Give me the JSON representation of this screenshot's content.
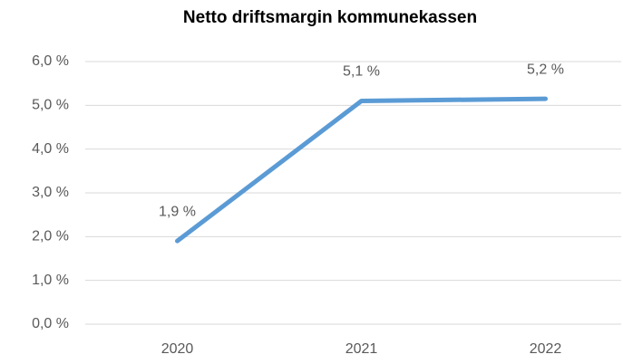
{
  "chart_data": {
    "type": "line",
    "title": "Netto driftsmargin kommunekassen",
    "categories": [
      "2020",
      "2021",
      "2022"
    ],
    "series": [
      {
        "color": "#5b9bd5",
        "values": [
          1.9,
          5.1,
          5.15
        ],
        "value_labels": [
          "1,9 %",
          "5,1 %",
          "5,2 %"
        ]
      }
    ],
    "ylim": [
      0,
      6
    ],
    "yticks": [
      {
        "value": 0,
        "label": "0,0 %"
      },
      {
        "value": 1,
        "label": "1,0 %"
      },
      {
        "value": 2,
        "label": "2,0 %"
      },
      {
        "value": 3,
        "label": "3,0 %"
      },
      {
        "value": 4,
        "label": "4,0 %"
      },
      {
        "value": 5,
        "label": "5,0 %"
      },
      {
        "value": 6,
        "label": "6,0 %"
      }
    ],
    "grid": true
  }
}
